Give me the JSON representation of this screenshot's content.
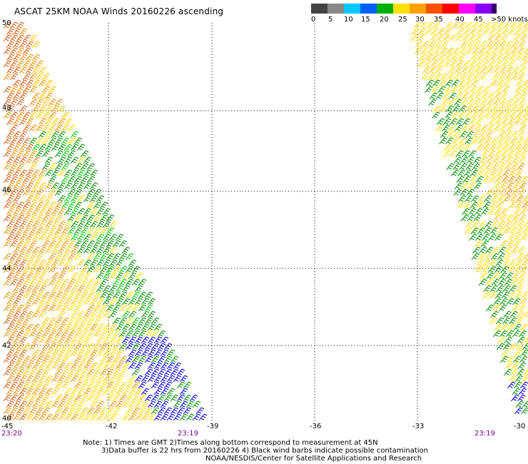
{
  "title": "ASCAT 25KM NOAA Winds 20160226 ascending",
  "legend": {
    "swatches": [
      {
        "label": "0",
        "color": "#444444"
      },
      {
        "label": "5",
        "color": "#888888"
      },
      {
        "label": "10",
        "color": "#00c8ff"
      },
      {
        "label": "15",
        "color": "#0060ff"
      },
      {
        "label": "20",
        "color": "#00b000"
      },
      {
        "label": "25",
        "color": "#ffe000"
      },
      {
        "label": "30",
        "color": "#ffa000"
      },
      {
        "label": "35",
        "color": "#ff5000"
      },
      {
        "label": "40",
        "color": "#ff0000"
      },
      {
        "label": "45",
        "color": "#ff00ff"
      },
      {
        "label": ">50 knots",
        "color": "#8800ff"
      },
      {
        "label": "",
        "color": "#3a0066"
      }
    ]
  },
  "lat_labels": [
    "50",
    "48",
    "46",
    "44",
    "42",
    "40"
  ],
  "lon_labels": [
    "-45",
    "-42",
    "-39",
    "-36",
    "-33",
    "-30"
  ],
  "times": {
    "left_pass": "23:20",
    "left_pass_end": "23:19",
    "right_pass": "23:19"
  },
  "notes": {
    "line1": "Note: 1) Times are GMT 2)Times along bottom correspond to measurement at 45N",
    "line2": "3)Data buffer is 22 hrs from 20160226 4) Black wind barbs indicate possible contamination",
    "line3": "NOAA/NESDIS/Center for Satellite Applications and Research"
  },
  "colors": {
    "blue": "#0000cc",
    "green": "#008c00",
    "lightgreen": "#00c800",
    "yellow": "#ffe000",
    "gold": "#ffc800",
    "orange": "#e89000",
    "darkorange": "#d05a10",
    "grid": "#000000"
  }
}
